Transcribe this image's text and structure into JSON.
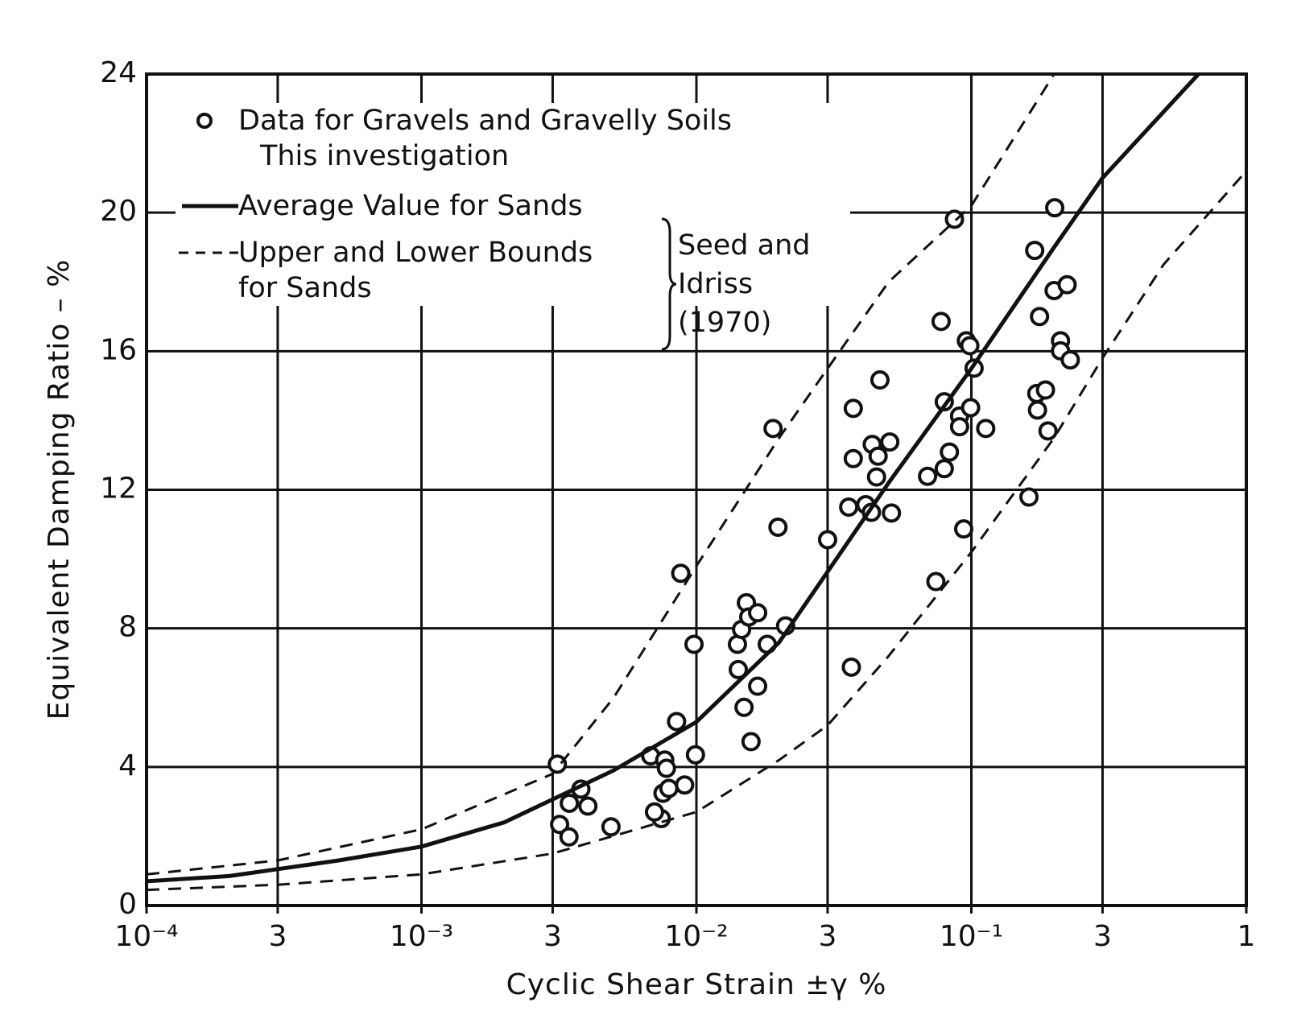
{
  "chart_data": {
    "type": "scatter",
    "x_label": "Cyclic Shear Strain ±γ %",
    "y_label": "Equivalent Damping Ratio – %",
    "x_scale": "log",
    "grid": true,
    "legend_note": "This investigation",
    "annotation": "Seed and Idriss (1970)",
    "xlim": [
      0.0001,
      1
    ],
    "ylim": [
      0,
      24
    ],
    "xticks": [
      {
        "value": 0.0001,
        "label": "10⁻⁴"
      },
      {
        "value": 0.0003,
        "label": "3"
      },
      {
        "value": 0.001,
        "label": "10⁻³"
      },
      {
        "value": 0.003,
        "label": "3"
      },
      {
        "value": 0.01,
        "label": "10⁻²"
      },
      {
        "value": 0.03,
        "label": "3"
      },
      {
        "value": 0.1,
        "label": "10⁻¹"
      },
      {
        "value": 0.3,
        "label": "3"
      },
      1
    ],
    "yticks": [
      0,
      4,
      8,
      12,
      16,
      20,
      24
    ],
    "series": [
      {
        "name": "Data for Gravels and Gravelly Soils",
        "kind": "points",
        "color": "#111",
        "x": [
          0.00312,
          0.00318,
          0.00344,
          0.00345,
          0.0038,
          0.00403,
          0.00489,
          0.00682,
          0.00767,
          0.00778,
          0.00756,
          0.00745,
          0.00704,
          0.00794,
          0.00906,
          0.00992,
          0.00847,
          0.00877,
          0.0098,
          0.0141,
          0.0142,
          0.0146,
          0.0152,
          0.0155,
          0.0167,
          0.0149,
          0.0158,
          0.0167,
          0.0181,
          0.019,
          0.0198,
          0.0211,
          0.03,
          0.0366,
          0.0372,
          0.0372,
          0.0358,
          0.0413,
          0.0433,
          0.0436,
          0.0458,
          0.0452,
          0.0465,
          0.0505,
          0.0512,
          0.0693,
          0.0743,
          0.0776,
          0.0797,
          0.0832,
          0.0797,
          0.0868,
          0.0906,
          0.0906,
          0.0938,
          0.0959,
          0.0987,
          0.0994,
          0.1023,
          0.1128,
          0.162,
          0.17,
          0.173,
          0.177,
          0.174,
          0.186,
          0.19,
          0.201,
          0.2,
          0.211,
          0.211,
          0.223,
          0.229
        ],
        "values": [
          4.08,
          2.34,
          1.98,
          2.95,
          3.36,
          2.87,
          2.27,
          4.32,
          4.2,
          3.96,
          3.24,
          2.51,
          2.7,
          3.38,
          3.48,
          4.35,
          5.31,
          9.59,
          7.54,
          7.54,
          6.81,
          7.97,
          8.74,
          8.33,
          8.45,
          5.72,
          4.73,
          6.33,
          7.54,
          13.77,
          10.92,
          8.07,
          10.56,
          6.88,
          14.35,
          12.9,
          11.5,
          11.57,
          11.35,
          13.31,
          12.97,
          12.37,
          15.17,
          13.38,
          11.33,
          12.39,
          9.35,
          16.86,
          12.61,
          13.09,
          14.54,
          19.81,
          14.13,
          13.82,
          10.87,
          16.3,
          16.16,
          14.37,
          15.51,
          13.77,
          11.79,
          18.91,
          14.78,
          17.0,
          14.3,
          14.88,
          13.7,
          20.14,
          17.75,
          16.3,
          16.01,
          17.92,
          15.75
        ]
      },
      {
        "name": "Average Value for Sands",
        "kind": "solid",
        "color": "#111",
        "x": [
          0.0001,
          0.0002,
          0.0005,
          0.001,
          0.002,
          0.005,
          0.01,
          0.02,
          0.05,
          0.1,
          0.2,
          0.3,
          0.67
        ],
        "values": [
          0.7,
          0.85,
          1.3,
          1.7,
          2.4,
          3.9,
          5.3,
          7.6,
          12.2,
          15.5,
          19.0,
          21.0,
          24.0
        ]
      },
      {
        "name": "Upper and Lower Bounds for Sands",
        "kind": "dashed",
        "color": "#111",
        "upper_x": [
          0.0001,
          0.0003,
          0.001,
          0.003,
          0.005,
          0.01,
          0.02,
          0.03,
          0.05,
          0.1,
          0.2
        ],
        "upper_values": [
          0.9,
          1.3,
          2.2,
          3.8,
          6.0,
          9.8,
          13.5,
          15.5,
          18.0,
          20.2,
          24.0
        ],
        "lower_x": [
          0.0001,
          0.0003,
          0.001,
          0.003,
          0.01,
          0.02,
          0.03,
          0.05,
          0.1,
          0.2,
          0.3,
          0.5,
          1
        ],
        "lower_values": [
          0.45,
          0.6,
          0.9,
          1.5,
          2.7,
          4.2,
          5.2,
          7.2,
          10.2,
          13.5,
          15.8,
          18.5,
          21.2
        ]
      }
    ]
  }
}
